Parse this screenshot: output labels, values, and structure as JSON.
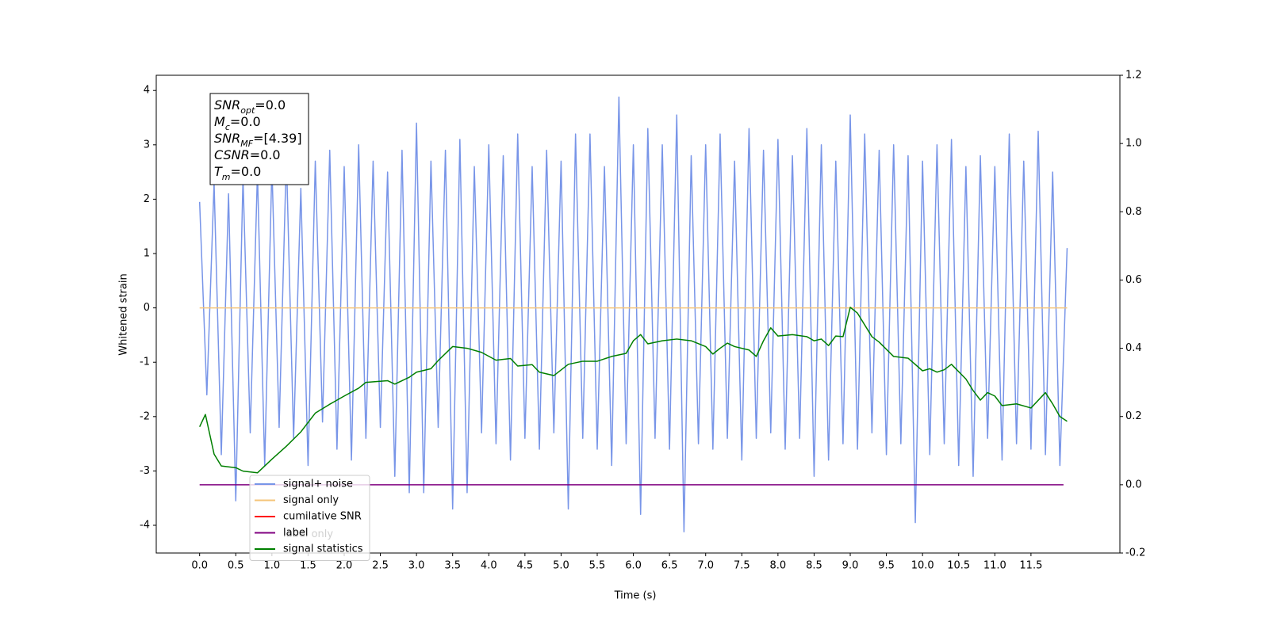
{
  "chart_data": {
    "type": "line",
    "xlabel": "Time (s)",
    "ylabel": "Whitened strain",
    "xlim": [
      -0.6,
      12.73
    ],
    "ylim": [
      -4.51,
      4.28
    ],
    "y2lim": [
      -0.2,
      1.2
    ],
    "xticks": [
      {
        "value": 0,
        "label": "0.0"
      },
      0.5,
      {
        "value": 1,
        "label": "1.0"
      },
      1.5,
      {
        "value": 2,
        "label": "2.0"
      },
      2.5,
      {
        "value": 3,
        "label": "3.0"
      },
      3.5,
      {
        "value": 4,
        "label": "4.0"
      },
      4.5,
      {
        "value": 5,
        "label": "5.0"
      },
      5.5,
      {
        "value": 6,
        "label": "6.0"
      },
      6.5,
      {
        "value": 7,
        "label": "7.0"
      },
      7.5,
      {
        "value": 8,
        "label": "8.0"
      },
      8.5,
      {
        "value": 9,
        "label": "9.0"
      },
      9.5,
      {
        "value": 10,
        "label": "10.0"
      },
      10.5,
      {
        "value": 11,
        "label": "11.0"
      },
      11.5
    ],
    "yticks": [
      -4,
      -3,
      -2,
      -1,
      0,
      1,
      2,
      3,
      4
    ],
    "y2ticks": [
      -0.2,
      {
        "value": 0,
        "label": "0.0"
      },
      0.2,
      0.4,
      0.6,
      0.8,
      {
        "value": 1,
        "label": "1.0"
      },
      1.2
    ],
    "legend": "lower left",
    "series": [
      {
        "name": "signal+ noise",
        "color": "#7895e8",
        "x": [
          0,
          0.1,
          0.2,
          0.3,
          0.4,
          0.5,
          0.6,
          0.7,
          0.8,
          0.9,
          1,
          1.1,
          1.2,
          1.3,
          1.4,
          1.5,
          1.6,
          1.7,
          1.8,
          1.9,
          2,
          2.1,
          2.2,
          2.3,
          2.4,
          2.5,
          2.6,
          2.7,
          2.8,
          2.9,
          3,
          3.1,
          3.2,
          3.3,
          3.4,
          3.5,
          3.6,
          3.7,
          3.8,
          3.9,
          4,
          4.1,
          4.2,
          4.3,
          4.4,
          4.5,
          4.6,
          4.7,
          4.8,
          4.9,
          5,
          5.1,
          5.2,
          5.3,
          5.4,
          5.5,
          5.6,
          5.7,
          5.8,
          5.9,
          6,
          6.1,
          6.2,
          6.3,
          6.4,
          6.5,
          6.6,
          6.7,
          6.8,
          6.9,
          7,
          7.1,
          7.2,
          7.3,
          7.4,
          7.5,
          7.6,
          7.7,
          7.8,
          7.9,
          8,
          8.1,
          8.2,
          8.3,
          8.4,
          8.5,
          8.6,
          8.7,
          8.8,
          8.9,
          9,
          9.1,
          9.2,
          9.3,
          9.4,
          9.5,
          9.6,
          9.7,
          9.8,
          9.9,
          10,
          10.1,
          10.2,
          10.3,
          10.4,
          10.5,
          10.6,
          10.7,
          10.8,
          10.9,
          11,
          11.1,
          11.2,
          11.3,
          11.4,
          11.5,
          11.6,
          11.7,
          11.8,
          11.9,
          12
        ],
        "values": [
          1.95,
          -1.6,
          2.3,
          -2.7,
          2.1,
          -3.55,
          2.4,
          -2.3,
          2.5,
          -2.9,
          2.6,
          -2.2,
          2.8,
          -2.4,
          2.2,
          -2.9,
          2.7,
          -2.1,
          2.9,
          -2.6,
          2.6,
          -2.8,
          3.0,
          -2.4,
          2.7,
          -2.2,
          2.5,
          -3.1,
          2.9,
          -3.4,
          3.4,
          -3.4,
          2.7,
          -2.2,
          2.9,
          -3.7,
          3.1,
          -3.4,
          2.6,
          -2.3,
          3.0,
          -2.5,
          2.8,
          -2.8,
          3.2,
          -2.4,
          2.6,
          -2.6,
          2.9,
          -2.3,
          2.7,
          -3.7,
          3.2,
          -2.4,
          3.2,
          -2.6,
          2.6,
          -2.9,
          3.88,
          -2.5,
          3.0,
          -3.8,
          3.3,
          -2.4,
          3.0,
          -2.6,
          3.55,
          -4.12,
          2.8,
          -2.5,
          3.0,
          -2.6,
          3.2,
          -2.4,
          2.7,
          -2.8,
          3.3,
          -2.4,
          2.9,
          -2.3,
          3.1,
          -2.6,
          2.8,
          -2.4,
          3.3,
          -3.1,
          3.0,
          -2.8,
          2.7,
          -2.5,
          3.55,
          -2.6,
          3.2,
          -2.3,
          2.9,
          -2.7,
          3.0,
          -2.5,
          2.8,
          -3.95,
          2.7,
          -2.7,
          3.0,
          -2.5,
          3.1,
          -2.9,
          2.6,
          -3.1,
          2.8,
          -2.4,
          2.6,
          -2.8,
          3.2,
          -2.5,
          2.7,
          -2.6,
          3.25,
          -2.7,
          2.5,
          -2.9,
          1.1
        ]
      },
      {
        "name": "signal only",
        "color": "#f5c57a",
        "x": [
          0,
          12
        ],
        "values": [
          0,
          0
        ]
      },
      {
        "name": "cumilative SNR",
        "color": "#ff0000",
        "x": [],
        "values": []
      },
      {
        "name": "label",
        "color": "#800080",
        "axis": "y2",
        "x": [
          0,
          11.95
        ],
        "values": [
          0,
          0
        ]
      },
      {
        "name": "signal statistics",
        "color": "#007f00",
        "axis": "y2",
        "x": [
          0,
          0.08,
          0.2,
          0.3,
          0.5,
          0.6,
          0.8,
          1.0,
          1.2,
          1.4,
          1.6,
          1.8,
          2.0,
          2.2,
          2.3,
          2.6,
          2.7,
          2.9,
          3.0,
          3.2,
          3.3,
          3.5,
          3.7,
          3.9,
          4.1,
          4.3,
          4.4,
          4.6,
          4.7,
          4.9,
          5.1,
          5.3,
          5.5,
          5.7,
          5.9,
          6.0,
          6.1,
          6.2,
          6.4,
          6.6,
          6.8,
          7.0,
          7.1,
          7.2,
          7.3,
          7.4,
          7.6,
          7.7,
          7.8,
          7.9,
          8.0,
          8.2,
          8.4,
          8.5,
          8.6,
          8.7,
          8.8,
          8.9,
          9.0,
          9.1,
          9.3,
          9.4,
          9.6,
          9.8,
          10.0,
          10.1,
          10.2,
          10.3,
          10.4,
          10.6,
          10.7,
          10.8,
          10.9,
          11.0,
          11.1,
          11.3,
          11.5,
          11.7,
          11.8,
          11.9,
          12.0
        ],
        "values": [
          0.17,
          0.206,
          0.09,
          0.055,
          0.05,
          0.04,
          0.035,
          0.075,
          0.113,
          0.155,
          0.21,
          0.236,
          0.26,
          0.283,
          0.3,
          0.305,
          0.295,
          0.315,
          0.33,
          0.34,
          0.364,
          0.405,
          0.4,
          0.388,
          0.365,
          0.37,
          0.348,
          0.352,
          0.33,
          0.32,
          0.353,
          0.362,
          0.362,
          0.376,
          0.385,
          0.422,
          0.44,
          0.413,
          0.422,
          0.427,
          0.422,
          0.405,
          0.383,
          0.4,
          0.415,
          0.405,
          0.395,
          0.376,
          0.422,
          0.46,
          0.436,
          0.44,
          0.434,
          0.422,
          0.427,
          0.408,
          0.436,
          0.434,
          0.52,
          0.503,
          0.434,
          0.418,
          0.376,
          0.371,
          0.334,
          0.34,
          0.33,
          0.337,
          0.353,
          0.31,
          0.276,
          0.248,
          0.27,
          0.26,
          0.232,
          0.237,
          0.225,
          0.27,
          0.237,
          0.2,
          0.186
        ]
      }
    ],
    "ghost_legend_text": "label only",
    "annotation": [
      {
        "main": "SNR",
        "sub": "opt",
        "text": "=0.0"
      },
      {
        "main": "M",
        "sub": "c",
        "text": "=0.0"
      },
      {
        "main": "SNR",
        "sub": "MF",
        "text": "=[4.39]"
      },
      {
        "main": "CSNR",
        "text": "=0.0"
      },
      {
        "main": "T",
        "sub": "m",
        "text": "=0.0"
      }
    ]
  }
}
